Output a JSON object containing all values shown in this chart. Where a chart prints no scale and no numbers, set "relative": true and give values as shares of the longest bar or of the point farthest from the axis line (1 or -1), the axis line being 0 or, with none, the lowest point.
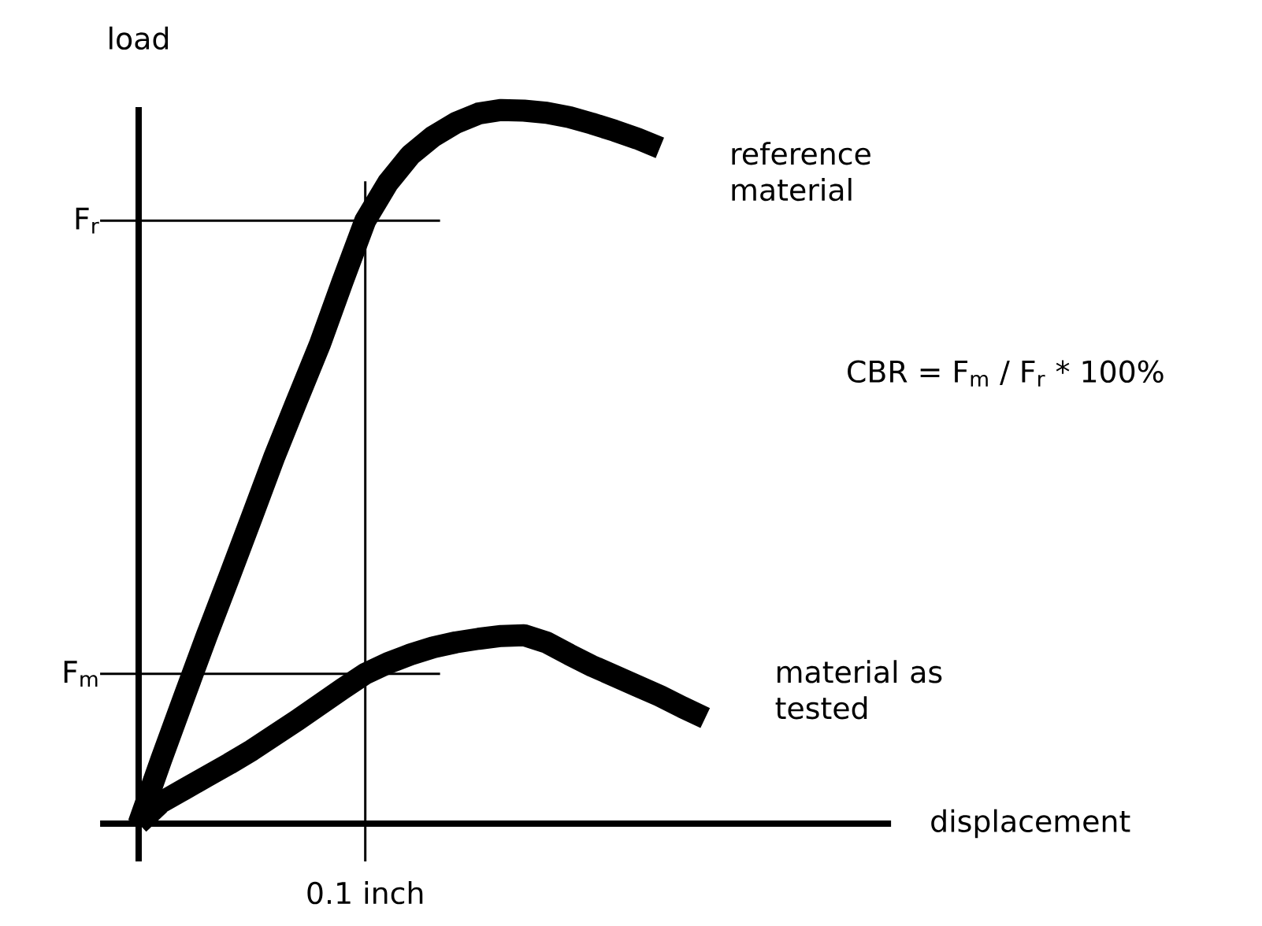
{
  "chart_data": {
    "type": "line",
    "relative": true,
    "ylabel": "load",
    "legend": false,
    "categories": [
      null,
      null,
      null,
      null,
      null,
      null,
      null,
      null,
      null,
      null,
      null,
      null,
      null,
      null,
      null,
      null,
      null,
      null,
      null,
      null,
      null,
      null,
      null,
      null,
      null,
      null
    ],
    "annotations": [
      "CBR = F$_{m}$ / F$_{r}$ * 100%",
      "0.1 inch",
      "displacement"
    ],
    "ref_lines": [
      {
        "axis": "y",
        "value": 0.845,
        "label": "F$_{r}$"
      },
      {
        "axis": "y",
        "value": 0.21,
        "label": "F$_{m}$"
      }
    ],
    "series": [
      {
        "name": "reference material",
        "color": "#000000",
        "values": [
          0,
          0.09,
          0.177,
          0.263,
          0.346,
          0.43,
          0.515,
          0.594,
          0.672,
          0.76,
          0.845,
          0.898,
          0.937,
          0.963,
          0.982,
          0.995,
          1.0,
          0.999,
          0.996,
          0.99,
          0.981,
          0.971,
          0.96,
          0.947,
          null,
          null
        ]
      },
      {
        "name": "material as tested",
        "color": "#000000",
        "values": [
          0,
          0.03,
          0.048,
          0.066,
          0.084,
          0.103,
          0.124,
          0.145,
          0.167,
          0.189,
          0.21,
          0.225,
          0.237,
          0.247,
          0.254,
          0.259,
          0.263,
          0.264,
          0.254,
          0.237,
          0.221,
          0.207,
          0.193,
          0.179,
          0.163,
          0.148
        ]
      }
    ]
  }
}
